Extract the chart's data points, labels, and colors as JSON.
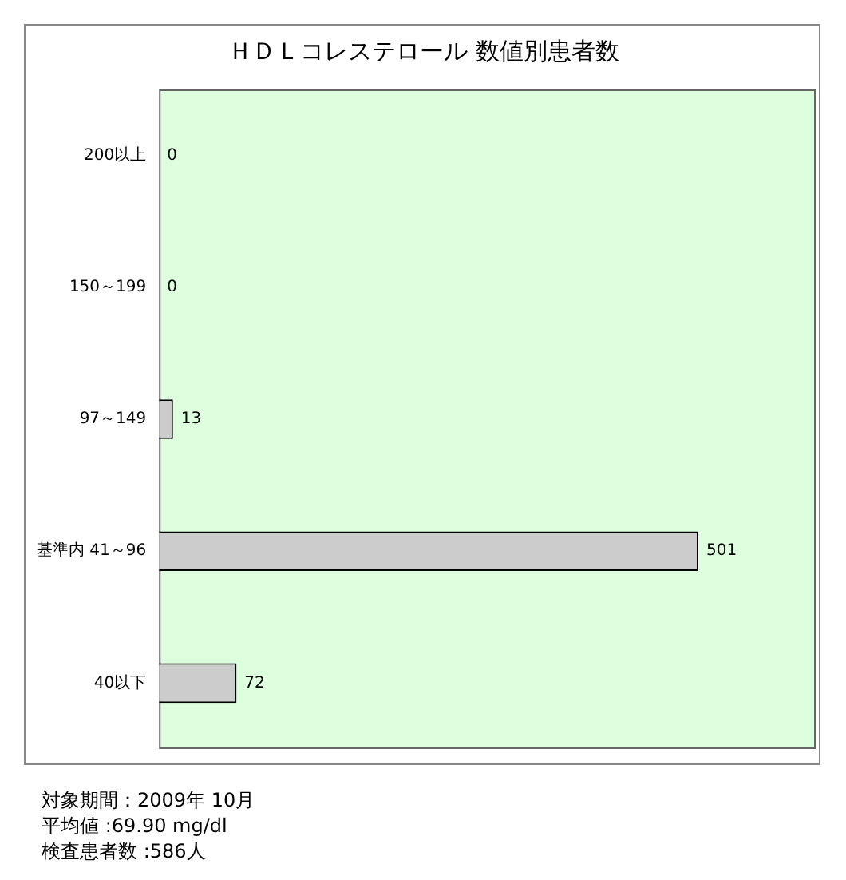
{
  "chart_data": {
    "type": "bar",
    "orientation": "horizontal",
    "title": "ＨＤＬコレステロール 数値別患者数",
    "categories": [
      "200以上",
      "150～199",
      "97～149",
      "基準内 41～96",
      "40以下"
    ],
    "values": [
      0,
      0,
      13,
      501,
      72
    ],
    "color": "#cccccc",
    "data_labels": true,
    "xlim": [
      0,
      610
    ],
    "tick_labels": "y",
    "grid": false,
    "legend": false,
    "annotations": [
      "対象期間：2009年 10月",
      "平均値 :69.90 mg/dl",
      "検査患者数 :586人"
    ]
  }
}
